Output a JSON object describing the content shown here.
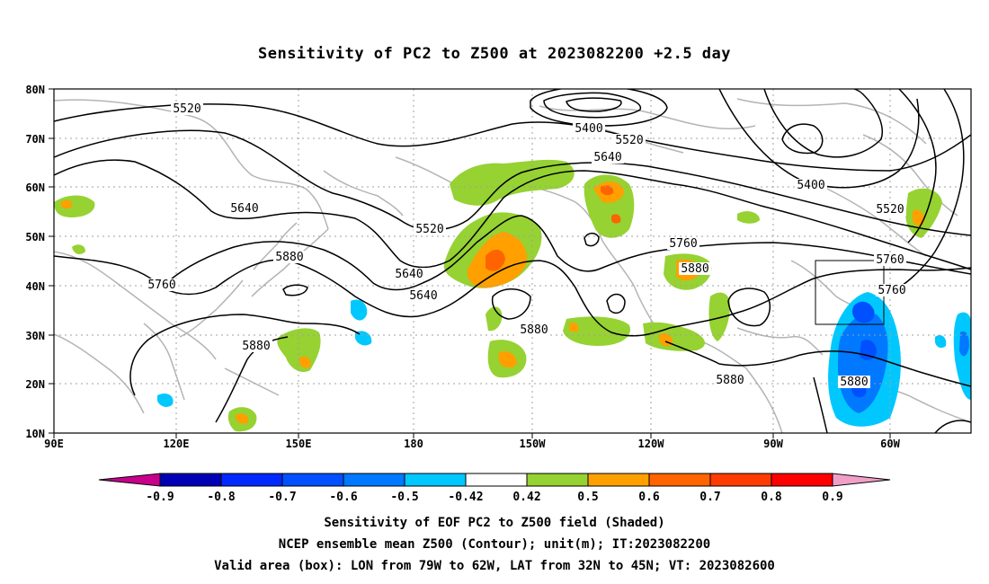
{
  "title": "Sensitivity of PC2 to Z500 at 2023082200 +2.5 day",
  "lat_labels": [
    "80N",
    "70N",
    "60N",
    "50N",
    "40N",
    "30N",
    "20N",
    "10N"
  ],
  "lon_labels": [
    "90E",
    "120E",
    "150E",
    "180",
    "150W",
    "120W",
    "90W",
    "60W"
  ],
  "contour_labels": [
    {
      "text": "5520"
    },
    {
      "text": "5400"
    },
    {
      "text": "5520"
    },
    {
      "text": "5640"
    },
    {
      "text": "5640"
    },
    {
      "text": "5400"
    },
    {
      "text": "5520"
    },
    {
      "text": "5520"
    },
    {
      "text": "5760"
    },
    {
      "text": "5880"
    },
    {
      "text": "5880"
    },
    {
      "text": "5640"
    },
    {
      "text": "5640"
    },
    {
      "text": "5760"
    },
    {
      "text": "5760"
    },
    {
      "text": "5880"
    },
    {
      "text": "5880"
    },
    {
      "text": "5880"
    },
    {
      "text": "5880"
    },
    {
      "text": "5760"
    }
  ],
  "colorbar": {
    "labels": [
      "-0.9",
      "-0.8",
      "-0.7",
      "-0.6",
      "-0.5",
      "-0.42",
      "0.42",
      "0.5",
      "0.6",
      "0.7",
      "0.8",
      "0.9"
    ],
    "colors": [
      "#0000b4",
      "#0028ff",
      "#0050ff",
      "#0078ff",
      "#00c8ff",
      "#ffffff",
      "#96d232",
      "#ffa000",
      "#ff6400",
      "#ff3c00",
      "#ff0000"
    ],
    "low_color": "#c8008c",
    "high_color": "#f0a0c8"
  },
  "captions": [
    "Sensitivity of EOF PC2 to Z500 field (Shaded)",
    "NCEP ensemble mean Z500 (Contour); unit(m); IT:2023082200",
    "Valid area (box): LON from 79W to 62W, LAT from 32N to 45N; VT: 2023082600"
  ]
}
